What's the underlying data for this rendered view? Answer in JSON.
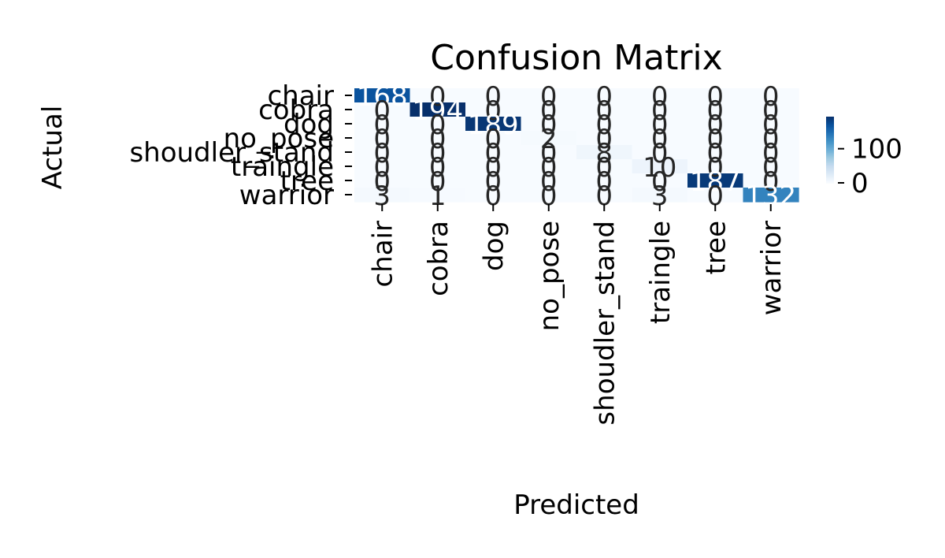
{
  "chart_data": {
    "type": "heatmap",
    "title": "Confusion Matrix",
    "xlabel": "Predicted",
    "ylabel": "Actual",
    "row_labels": [
      "chair",
      "cobra",
      "dog",
      "no_pose",
      "shoudler_stand",
      "traingle",
      "tree",
      "warrior"
    ],
    "col_labels": [
      "chair",
      "cobra",
      "dog",
      "no_pose",
      "shoudler_stand",
      "traingle",
      "tree",
      "warrior"
    ],
    "matrix": [
      [
        168,
        0,
        0,
        0,
        0,
        0,
        0,
        0
      ],
      [
        0,
        194,
        0,
        0,
        0,
        0,
        0,
        0
      ],
      [
        0,
        0,
        189,
        0,
        0,
        0,
        0,
        0
      ],
      [
        0,
        0,
        0,
        2,
        0,
        0,
        0,
        0
      ],
      [
        0,
        0,
        0,
        0,
        8,
        0,
        0,
        0
      ],
      [
        0,
        0,
        0,
        0,
        0,
        10,
        0,
        0
      ],
      [
        0,
        0,
        0,
        0,
        0,
        0,
        187,
        0
      ],
      [
        3,
        1,
        0,
        0,
        0,
        3,
        0,
        132
      ]
    ],
    "colorbar": {
      "ticks": [
        0,
        100
      ],
      "vmin": 0,
      "vmax": 194
    },
    "colormap": "Blues",
    "colors": {
      "low": "#f7fbff",
      "high": "#08306b",
      "text_dark": "#262626",
      "text_light": "#ffffff"
    },
    "grid": false
  }
}
